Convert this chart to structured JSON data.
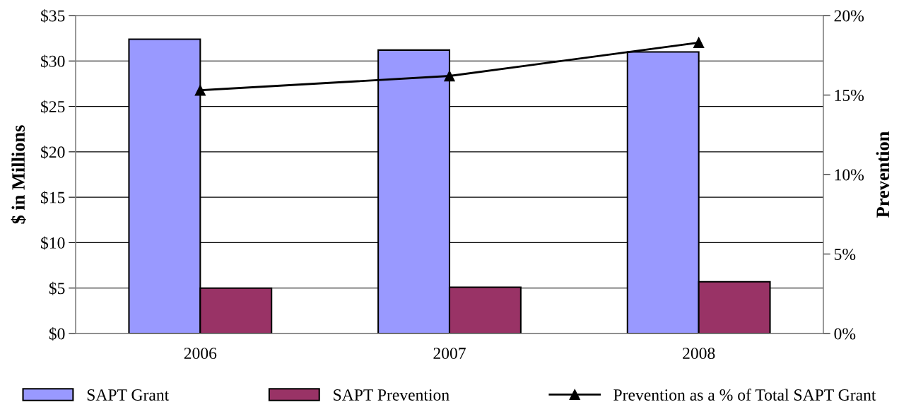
{
  "chart_data": {
    "type": "bar",
    "categories": [
      "2006",
      "2007",
      "2008"
    ],
    "series": [
      {
        "name": "SAPT Grant",
        "color": "#9999ff",
        "values": [
          32.4,
          31.2,
          31.0
        ]
      },
      {
        "name": "SAPT Prevention",
        "color": "#993366",
        "values": [
          5.0,
          5.1,
          5.7
        ]
      },
      {
        "name": "Prevention as a % of Total SAPT Grant",
        "type": "line",
        "axis": "y2",
        "color": "#000000",
        "marker": "triangle",
        "values": [
          15.3,
          16.2,
          18.3
        ]
      }
    ],
    "ylabel": "$ in Millions",
    "y2label": "Prevention",
    "ylim": [
      0,
      35
    ],
    "yticks": [
      {
        "value": 0,
        "label": "$0"
      },
      {
        "value": 5,
        "label": "$5"
      },
      {
        "value": 10,
        "label": "$10"
      },
      {
        "value": 15,
        "label": "$15"
      },
      {
        "value": 20,
        "label": "$20"
      },
      {
        "value": 25,
        "label": "$25"
      },
      {
        "value": 30,
        "label": "$30"
      },
      {
        "value": 35,
        "label": "$35"
      }
    ],
    "y2lim": [
      0,
      20
    ],
    "y2ticks": [
      {
        "value": 0,
        "label": "0%"
      },
      {
        "value": 5,
        "label": "5%"
      },
      {
        "value": 10,
        "label": "10%"
      },
      {
        "value": 15,
        "label": "15%"
      },
      {
        "value": 20,
        "label": "20%"
      }
    ],
    "grid": "y",
    "legend": "bottom"
  }
}
